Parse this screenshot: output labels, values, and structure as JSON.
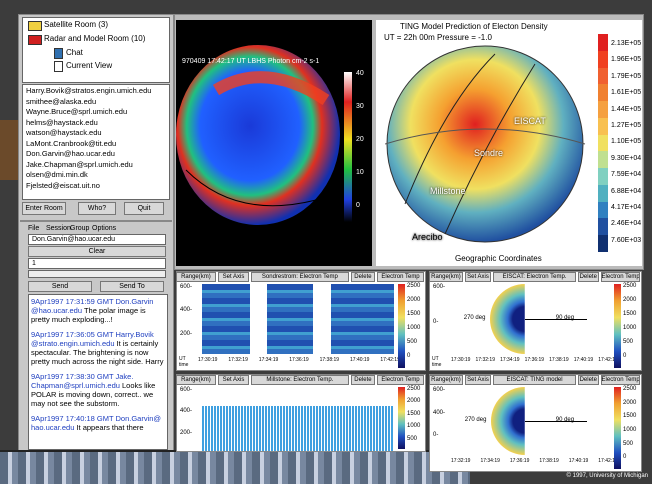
{
  "rooms": {
    "items": [
      "Satellite Room (3)",
      "Radar and Model Room (10)"
    ],
    "subitems": [
      "Chat",
      "Current View"
    ]
  },
  "users": [
    "Harry.Bovik@stratos.engin.umich.edu",
    "smithee@alaska.edu",
    "Wayne.Bruce@sprl.umich.edu",
    "helms@haystack.edu",
    "watson@haystack.edu",
    "LaMont.Cranbrook@tit.edu",
    "Don.Garvin@hao.ucar.edu",
    "Jake.Chapman@sprl.umich.edu",
    "olsen@dmi.min.dk",
    "Fjelsted@eiscat.uit.no"
  ],
  "room_buttons": [
    "Enter Room",
    "Who?",
    "Quit"
  ],
  "chat": {
    "menu": [
      "File",
      "Session",
      "Group",
      "Options"
    ],
    "to": "Don.Garvin@hao.ucar.edu",
    "clear": "Clear",
    "input": "1",
    "send": "Send",
    "send_to": "Send To",
    "messages": [
      {
        "header": "9Apr1997 17:31:59 GMT Don.Garvin @hao.ucar.edu",
        "body": "The polar image is pretty much exploding...!"
      },
      {
        "header": "9Apr1997 17:36:05 GMT Harry.Bovik @strato.engin.umich.edu",
        "body": "It is certainly spectacular. The brightening is now pretty much across the night side.  Harry"
      },
      {
        "header": "9Apr1997 17:38:30 GMT Jake. Chapman@sprl.umich.edu",
        "body": "Looks like POLAR is moving down, correct.. we may not see the substorm."
      },
      {
        "header": "9Apr1997 17:40:18 GMT Don.Garvin@ hao.ucar.edu",
        "body": "It appears that there"
      }
    ]
  },
  "satellite": {
    "header": "970409   17:42:17 UT   LBHS   Photon cm-2  s-1",
    "scale": [
      "40",
      "30",
      "20",
      "10",
      "0"
    ]
  },
  "ting": {
    "title": "TING Model Prediction of Electon Density",
    "subtitle": "UT = 22h 00m    Pressure = -1.0",
    "scale": [
      "2.13E+05",
      "1.96E+05",
      "1.79E+05",
      "1.61E+05",
      "1.44E+05",
      "1.27E+05",
      "1.10E+05",
      "9.30E+04",
      "7.59E+04",
      "6.88E+04",
      "4.17E+04",
      "2.46E+04",
      "7.60E+03"
    ],
    "sites": [
      "EISCAT",
      "Sondre",
      "Millstone",
      "Arecibo"
    ],
    "footer": "Geographic Coordinates"
  },
  "panels": [
    {
      "buttons": [
        "Range(km)",
        "Set Axis",
        "Sondrestrom: Electron Temp",
        "Delete",
        "Electron Temp"
      ],
      "yticks": [
        "600-",
        "400-",
        "200-"
      ],
      "xticks": [
        "17:30:19",
        "17:32:19",
        "17:34:19",
        "17:36:19",
        "17:38:19",
        "17:40:19",
        "17:42:19"
      ],
      "xlabel": "UT time",
      "scale": [
        "2500",
        "2000",
        "1500",
        "1000",
        "500",
        "0"
      ]
    },
    {
      "buttons": [
        "Range(km)",
        "Set Axis",
        "EISCAT: Electron Temp.",
        "Delete",
        "Electron Temp"
      ],
      "yticks": [
        "600-",
        "0-"
      ],
      "xticks": [
        "17:30:19",
        "17:32:19",
        "17:34:19",
        "17:36:19",
        "17:38:19",
        "17:40:19",
        "17:42:19"
      ],
      "xlabel": "UT time",
      "angles": [
        "270 deg",
        "90 deg"
      ],
      "scale": [
        "2500",
        "2000",
        "1500",
        "1000",
        "500",
        "0"
      ]
    },
    {
      "buttons": [
        "Range(km)",
        "Set Axis",
        "Millstone: Electron Temp.",
        "Delete",
        "Electron Temp"
      ],
      "yticks": [
        "600-",
        "400-",
        "200-"
      ],
      "scale": [
        "2500",
        "2000",
        "1500",
        "1000",
        "500"
      ]
    },
    {
      "buttons": [
        "Range(km)",
        "Set Axis",
        "EISCAT: TING model",
        "Delete",
        "Electron Temp"
      ],
      "yticks": [
        "600-",
        "400-",
        "0-"
      ],
      "xticks": [
        "17:32:19",
        "17:34:19",
        "17:36:19",
        "17:38:19",
        "17:40:19",
        "17:42:19"
      ],
      "angles": [
        "270 deg",
        "90 deg"
      ],
      "scale": [
        "2500",
        "2000",
        "1500",
        "1000",
        "500",
        "0"
      ]
    }
  ],
  "copyright": "© 1997, University of Michigan"
}
